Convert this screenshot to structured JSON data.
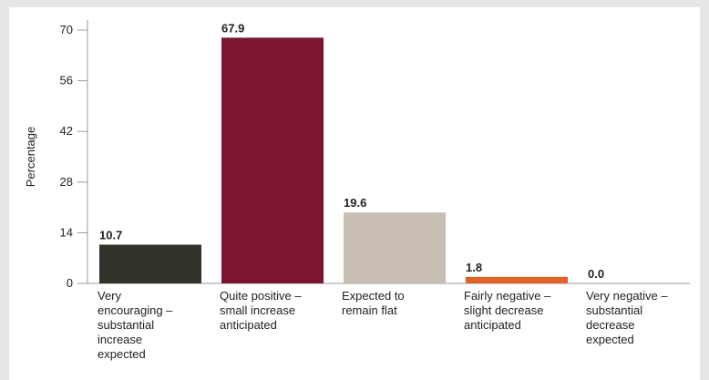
{
  "chart_data": {
    "type": "bar",
    "ylabel": "Percentage",
    "categories": [
      "Very\nencouraging –\nsubstantial\nincrease\nexpected",
      "Quite positive –\nsmall increase\nanticipated",
      "Expected to\nremain flat",
      "Fairly negative –\nslight decrease\nanticipated",
      "Very negative –\nsubstantial\ndecrease\nexpected"
    ],
    "values": [
      10.7,
      67.9,
      19.6,
      1.8,
      0.0
    ],
    "value_labels": [
      "10.7",
      "67.9",
      "19.6",
      "1.8",
      "0.0"
    ],
    "colors": [
      "#32332b",
      "#7b1530",
      "#c8beb4",
      "#e0622a",
      "#e0622a"
    ],
    "ylim": [
      0,
      70
    ],
    "yticks": [
      0,
      14,
      28,
      42,
      56,
      70
    ],
    "grid": false
  }
}
